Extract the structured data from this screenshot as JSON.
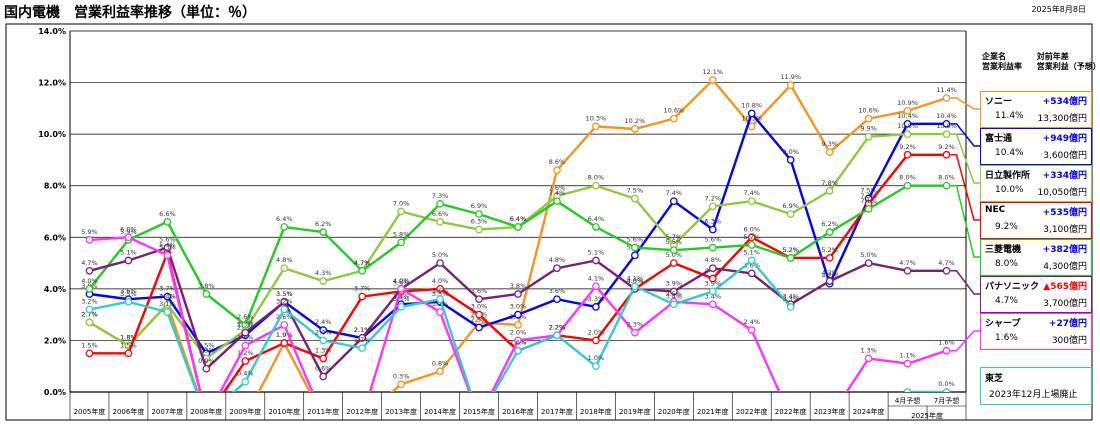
{
  "header": {
    "title": "国内電機　営業利益率推移（単位：％）",
    "date": "2025年8月8日"
  },
  "legend_header": {
    "col1_line1": "企業名",
    "col1_line2": "営業利益率",
    "col2_line1": "対前年差",
    "col2_line2": "営業利益（予想）"
  },
  "panels": [
    {
      "name": "ソニー",
      "diff": "+534億円",
      "rate": "11.4%",
      "profit": "13,300億円",
      "color": "#F7941D",
      "diff_color": "#0000FF"
    },
    {
      "name": "富士通",
      "diff": "+949億円",
      "rate": "10.4%",
      "profit": "3,600億円",
      "color": "#0000FF",
      "diff_color": "#0000FF"
    },
    {
      "name": "日立製作所",
      "diff": "+334億円",
      "rate": "10.0%",
      "profit": "10,050億円",
      "color": "#92C83E",
      "diff_color": "#0000FF"
    },
    {
      "name": "NEC",
      "diff": "+535億円",
      "rate": "9.2%",
      "profit": "3,100億円",
      "color": "#FF0000",
      "diff_color": "#0000FF"
    },
    {
      "name": "三菱電機",
      "diff": "+382億円",
      "rate": "8.0%",
      "profit": "4,300億円",
      "color": "#22CC22",
      "diff_color": "#0000FF"
    },
    {
      "name": "パナソニック",
      "diff": "▲565億円",
      "rate": "4.7%",
      "profit": "3,700億円",
      "color": "#7B1F7B",
      "diff_color": "#FF0000"
    },
    {
      "name": "シャープ",
      "diff": "+27億円",
      "rate": "1.6%",
      "profit": "300億円",
      "color": "#FF33FF",
      "diff_color": "#0000FF"
    }
  ],
  "toshiba_panel": {
    "name": "東芝",
    "note": "2023年12月上場廃止",
    "color": "#33CCCC"
  },
  "chart_data": {
    "type": "line",
    "ylim": [
      0,
      14
    ],
    "y_ticks": [
      "0.0%",
      "2.0%",
      "4.0%",
      "6.0%",
      "8.0%",
      "10.0%",
      "12.0%",
      "14.0%"
    ],
    "y_tick_values": [
      0,
      2,
      4,
      6,
      8,
      10,
      12,
      14
    ],
    "categories": [
      "2005年度",
      "2006年度",
      "2007年度",
      "2008年度",
      "2009年度",
      "2010年度",
      "2011年度",
      "2012年度",
      "2013年度",
      "2014年度",
      "2015年度",
      "2016年度",
      "2017年度",
      "2018年度",
      "2019年度",
      "2020年度",
      "2021年度",
      "2022年度",
      "2022年度",
      "2023年度",
      "2024年度",
      "4月予想",
      "7月予想"
    ],
    "group_label": "2025年度",
    "grid": true,
    "series": [
      {
        "name": "ソニー",
        "color": "#F7941D",
        "values": [
          2.7,
          1.8,
          3.4,
          -1,
          -1,
          1.9,
          -1,
          -1,
          0.3,
          0.8,
          2.7,
          2.6,
          8.6,
          10.3,
          10.2,
          10.6,
          12.1,
          10.3,
          11.9,
          9.3,
          10.6,
          10.9,
          11.4
        ],
        "labels": [
          "2.7%",
          "1.8%",
          "3.4%",
          null,
          null,
          "1.9%",
          null,
          null,
          "0.3%",
          "0.8%",
          "2.7%",
          "2.6%",
          "8.6%",
          "10.3%",
          "10.2%",
          "10.6%",
          "12.1%",
          "10.3%",
          "11.9%",
          "9.3%",
          "10.6%",
          "10.9%",
          "11.4%"
        ]
      },
      {
        "name": "富士通",
        "color": "#0000FF",
        "values": [
          3.8,
          3.6,
          3.7,
          1.5,
          2.2,
          3.5,
          2.4,
          2.1,
          3.4,
          3.5,
          2.5,
          3.0,
          3.6,
          3.3,
          5.3,
          7.4,
          6.3,
          10.8,
          9.0,
          4.2,
          7.5,
          10.4,
          10.4
        ],
        "labels": [
          "3.8%",
          "3.6%",
          "3.7%",
          "1.5%",
          "2.2%",
          "3.5%",
          "2.4%",
          "2.1%",
          "3.4%",
          "3.5%",
          "2.5%",
          "3.0%",
          "3.6%",
          "3.3%",
          "5.3%",
          "7.4%",
          "6.3%",
          "10.8%",
          "9.0%",
          "4.2%",
          "7.5%",
          "10.4%",
          "10.4%"
        ]
      },
      {
        "name": "日立製作所",
        "color": "#92C83E",
        "values": [
          2.7,
          1.8,
          3.4,
          1.3,
          2.4,
          4.8,
          4.3,
          4.7,
          7.0,
          6.6,
          6.3,
          6.4,
          7.6,
          8.0,
          7.5,
          5.7,
          7.2,
          7.4,
          6.9,
          7.8,
          9.9,
          10.0,
          10.0
        ],
        "labels": [
          "2.7%",
          "1.8%",
          "3.4%",
          "1.3%",
          "2.4%",
          "4.8%",
          "4.3%",
          "4.7%",
          "7.0%",
          "6.6%",
          "6.3%",
          "6.4%",
          "7.6%",
          "8.0%",
          "7.5%",
          "5.7%",
          "7.2%",
          "7.4%",
          "6.9%",
          "7.8%",
          "9.9%",
          "10.0%",
          "10.0%"
        ]
      },
      {
        "name": "NEC",
        "color": "#FF0000",
        "values": [
          1.5,
          1.5,
          5.4,
          -1,
          1.2,
          1.9,
          1.3,
          3.7,
          3.9,
          4.0,
          3.0,
          1.6,
          2.2,
          2.0,
          4.0,
          5.0,
          4.4,
          6.0,
          5.2,
          5.2,
          7.3,
          9.2,
          9.2
        ],
        "labels": [
          "1.5%",
          "1.5%",
          "5.4%",
          null,
          "1.2%",
          "1.9%",
          "1.3%",
          "3.7%",
          "3.9%",
          "4.0%",
          "3.0%",
          "1.6%",
          "2.2%",
          "2.0%",
          "4.0%",
          "5.0%",
          "4.4%",
          "6.0%",
          "5.2%",
          "5.2%",
          "7.3%",
          "9.2%",
          "9.2%"
        ]
      },
      {
        "name": "三菱電機",
        "color": "#22CC22",
        "values": [
          4.0,
          5.9,
          6.6,
          3.8,
          2.6,
          6.4,
          6.2,
          4.7,
          5.8,
          7.3,
          6.9,
          6.4,
          7.4,
          6.4,
          5.6,
          5.5,
          5.6,
          5.7,
          5.2,
          6.2,
          7.1,
          8.0,
          8.0
        ],
        "labels": [
          "4.0%",
          "5.9%",
          "6.6%",
          "3.8%",
          "2.6%",
          "6.4%",
          "6.2%",
          "4.7%",
          "5.8%",
          "7.3%",
          "6.9%",
          "6.4%",
          "7.4%",
          "6.4%",
          "5.6%",
          "5.5%",
          "5.6%",
          "5.7%",
          "5.2%",
          "6.2%",
          "7.1%",
          "8.0%",
          "8.0%"
        ]
      },
      {
        "name": "パナソニック",
        "color": "#7B1F7B",
        "values": [
          4.7,
          5.1,
          5.6,
          0.9,
          2.3,
          3.5,
          0.6,
          2.1,
          4.0,
          5.0,
          3.6,
          3.8,
          4.8,
          5.1,
          4.0,
          3.9,
          4.8,
          4.6,
          3.4,
          4.3,
          5.0,
          4.7,
          4.7
        ],
        "labels": [
          "4.7%",
          "5.1%",
          "5.6%",
          "0.9%",
          "2.3%",
          "3.5%",
          "0.6%",
          "2.1%",
          "4.0%",
          "5.0%",
          "3.6%",
          "3.8%",
          "4.8%",
          "5.1%",
          "4.0%",
          "3.9%",
          "4.8%",
          "4.6%",
          "3.4%",
          "4.3%",
          "5.0%",
          "4.7%",
          "4.7%"
        ]
      },
      {
        "name": "シャープ",
        "color": "#FF33FF",
        "values": [
          5.9,
          6.0,
          5.3,
          -1,
          1.8,
          2.6,
          -1,
          -1,
          4.0,
          3.1,
          -1,
          2.0,
          2.2,
          4.1,
          2.3,
          3.5,
          3.4,
          2.4,
          -1,
          -1,
          1.3,
          1.1,
          1.6
        ],
        "labels": [
          "5.9%",
          "6.0%",
          "5.3%",
          null,
          "1.8%",
          "2.6%",
          null,
          null,
          "4.0%",
          "3.1%",
          null,
          "2.0%",
          "2.2%",
          "4.1%",
          "2.3%",
          "3.5%",
          "3.4%",
          "2.4%",
          null,
          null,
          "1.3%",
          "1.1%",
          "1.6%"
        ]
      },
      {
        "name": "東芝",
        "color": "#33CCCC",
        "values": [
          3.2,
          3.5,
          3.1,
          -1,
          0.4,
          3.2,
          2.0,
          1.7,
          3.3,
          3.6,
          -1,
          1.6,
          2.2,
          1.0,
          4.1,
          3.4,
          3.9,
          5.1,
          3.3,
          null,
          null,
          0.0,
          0.0
        ],
        "labels": [
          "3.2%",
          "3.5%",
          "3.1%",
          null,
          "0.4%",
          "3.2%",
          "2.0%",
          "1.7%",
          "3.3%",
          "3.6%",
          null,
          "1.6%",
          "2.2%",
          "1.0%",
          "4.1%",
          "3.4%",
          "3.9%",
          "5.1%",
          "3.3%",
          null,
          null,
          null,
          "0.0%"
        ]
      }
    ]
  }
}
